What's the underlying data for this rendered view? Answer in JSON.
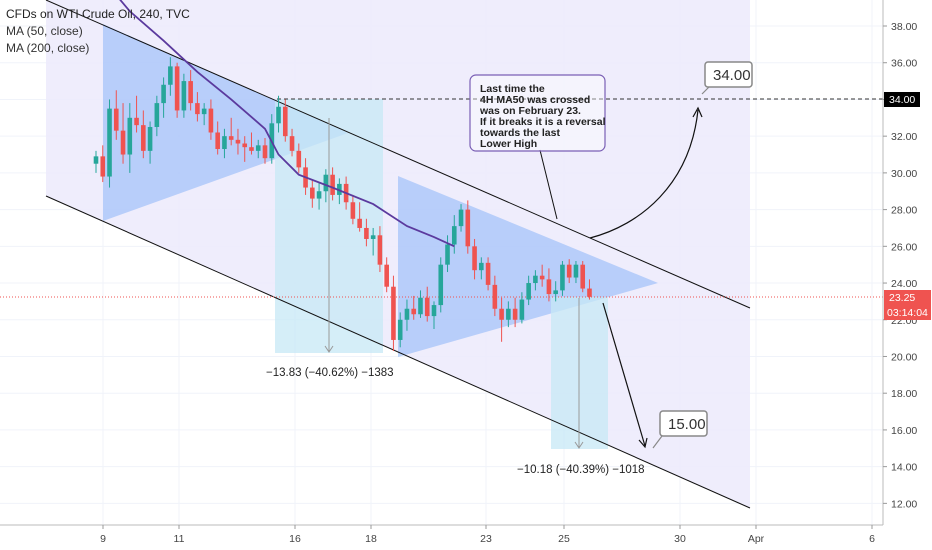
{
  "legend": {
    "title": "CFDs on WTI Crude Oil, 240, TVC",
    "ma50": "MA (50, close)",
    "ma200": "MA (200, close)"
  },
  "colors": {
    "up": "#26a69a",
    "down": "#ef5350",
    "ma50": "#5b3a9e",
    "channel_fill": "#eceafb",
    "triangle_fill": "#8ab4f8",
    "projection_fill": "#c7e8f6",
    "price_badge": "#ef5350",
    "level_badge": "#000000"
  },
  "annotations": {
    "note": [
      "Last time the",
      "4H MA50 was crossed",
      "was on February 23.",
      "If it breaks it is a reversal",
      "towards the last",
      "Lower High"
    ],
    "measure1": "−13.83 (−40.62%) −1383",
    "measure2": "−10.18 (−40.39%) −1018",
    "target_up": "34.00",
    "target_down": "15.00"
  },
  "chart_data": {
    "type": "candlestick",
    "title": "CFDs on WTI Crude Oil, 240, TVC",
    "y_axis_ticks": [
      "38.00",
      "36.00",
      "34.00",
      "32.00",
      "30.00",
      "28.00",
      "26.00",
      "24.00",
      "22.00",
      "20.00",
      "18.00",
      "16.00",
      "14.00",
      "12.00"
    ],
    "ylim": [
      11,
      39.5
    ],
    "x_axis_ticks": [
      "9",
      "11",
      "16",
      "18",
      "23",
      "25",
      "30",
      "Apr",
      "6"
    ],
    "last_price": "23.25",
    "countdown": "03:14:04",
    "level_marker": "34.00",
    "candles": [
      {
        "o": 30.5,
        "h": 31.2,
        "l": 30.0,
        "c": 30.9
      },
      {
        "o": 30.9,
        "h": 31.5,
        "l": 29.5,
        "c": 29.8
      },
      {
        "o": 29.8,
        "h": 34.0,
        "l": 29.2,
        "c": 33.5
      },
      {
        "o": 33.5,
        "h": 34.5,
        "l": 31.8,
        "c": 32.3
      },
      {
        "o": 32.3,
        "h": 33.8,
        "l": 30.5,
        "c": 31.0
      },
      {
        "o": 31.0,
        "h": 33.8,
        "l": 30.0,
        "c": 33.0
      },
      {
        "o": 33.0,
        "h": 34.2,
        "l": 32.2,
        "c": 32.6
      },
      {
        "o": 32.6,
        "h": 33.4,
        "l": 30.8,
        "c": 31.2
      },
      {
        "o": 31.2,
        "h": 32.8,
        "l": 30.5,
        "c": 32.5
      },
      {
        "o": 32.5,
        "h": 34.2,
        "l": 32.0,
        "c": 33.8
      },
      {
        "o": 33.8,
        "h": 35.2,
        "l": 33.0,
        "c": 34.8
      },
      {
        "o": 34.8,
        "h": 36.3,
        "l": 34.2,
        "c": 35.8
      },
      {
        "o": 35.8,
        "h": 36.0,
        "l": 33.0,
        "c": 33.4
      },
      {
        "o": 33.4,
        "h": 35.4,
        "l": 33.0,
        "c": 35.0
      },
      {
        "o": 35.0,
        "h": 35.6,
        "l": 33.4,
        "c": 33.8
      },
      {
        "o": 33.8,
        "h": 34.4,
        "l": 32.8,
        "c": 33.2
      },
      {
        "o": 33.2,
        "h": 33.8,
        "l": 32.6,
        "c": 33.5
      },
      {
        "o": 33.5,
        "h": 34.0,
        "l": 31.8,
        "c": 32.2
      },
      {
        "o": 32.2,
        "h": 32.8,
        "l": 31.0,
        "c": 31.3
      },
      {
        "o": 31.3,
        "h": 32.4,
        "l": 30.8,
        "c": 32.0
      },
      {
        "o": 32.0,
        "h": 33.0,
        "l": 31.5,
        "c": 31.8
      },
      {
        "o": 31.8,
        "h": 32.4,
        "l": 31.0,
        "c": 31.6
      },
      {
        "o": 31.6,
        "h": 32.0,
        "l": 30.6,
        "c": 31.4
      },
      {
        "o": 31.4,
        "h": 32.2,
        "l": 31.0,
        "c": 31.2
      },
      {
        "o": 31.2,
        "h": 31.8,
        "l": 30.8,
        "c": 31.5
      },
      {
        "o": 31.5,
        "h": 31.9,
        "l": 30.5,
        "c": 30.8
      },
      {
        "o": 30.8,
        "h": 33.2,
        "l": 30.5,
        "c": 32.7
      },
      {
        "o": 32.7,
        "h": 34.2,
        "l": 32.2,
        "c": 33.6
      },
      {
        "o": 33.6,
        "h": 34.0,
        "l": 31.7,
        "c": 32.0
      },
      {
        "o": 32.0,
        "h": 32.4,
        "l": 30.9,
        "c": 31.2
      },
      {
        "o": 31.2,
        "h": 31.6,
        "l": 30.0,
        "c": 30.3
      },
      {
        "o": 30.3,
        "h": 30.8,
        "l": 28.8,
        "c": 29.2
      },
      {
        "o": 29.2,
        "h": 29.6,
        "l": 28.1,
        "c": 28.6
      },
      {
        "o": 28.6,
        "h": 29.5,
        "l": 28.0,
        "c": 29.0
      },
      {
        "o": 29.0,
        "h": 30.2,
        "l": 28.4,
        "c": 29.9
      },
      {
        "o": 29.9,
        "h": 30.3,
        "l": 28.5,
        "c": 28.8
      },
      {
        "o": 28.8,
        "h": 29.7,
        "l": 28.3,
        "c": 29.4
      },
      {
        "o": 29.4,
        "h": 29.8,
        "l": 28.0,
        "c": 28.4
      },
      {
        "o": 28.4,
        "h": 28.8,
        "l": 27.2,
        "c": 27.5
      },
      {
        "o": 27.5,
        "h": 28.4,
        "l": 26.8,
        "c": 27.0
      },
      {
        "o": 27.0,
        "h": 27.5,
        "l": 26.0,
        "c": 26.4
      },
      {
        "o": 26.4,
        "h": 27.0,
        "l": 25.5,
        "c": 26.6
      },
      {
        "o": 26.6,
        "h": 27.1,
        "l": 24.6,
        "c": 25.0
      },
      {
        "o": 25.0,
        "h": 25.4,
        "l": 23.5,
        "c": 23.8
      },
      {
        "o": 23.8,
        "h": 24.4,
        "l": 20.3,
        "c": 20.9
      },
      {
        "o": 20.9,
        "h": 22.4,
        "l": 20.5,
        "c": 22.0
      },
      {
        "o": 22.0,
        "h": 23.1,
        "l": 21.4,
        "c": 22.6
      },
      {
        "o": 22.6,
        "h": 23.3,
        "l": 22.0,
        "c": 22.3
      },
      {
        "o": 22.3,
        "h": 23.6,
        "l": 22.1,
        "c": 23.2
      },
      {
        "o": 23.2,
        "h": 23.8,
        "l": 21.9,
        "c": 22.2
      },
      {
        "o": 22.2,
        "h": 23.0,
        "l": 21.5,
        "c": 22.8
      },
      {
        "o": 22.8,
        "h": 25.4,
        "l": 22.4,
        "c": 25.0
      },
      {
        "o": 25.0,
        "h": 26.6,
        "l": 24.6,
        "c": 26.1
      },
      {
        "o": 26.1,
        "h": 27.7,
        "l": 25.6,
        "c": 27.1
      },
      {
        "o": 27.1,
        "h": 28.3,
        "l": 26.8,
        "c": 28.0
      },
      {
        "o": 28.0,
        "h": 28.5,
        "l": 25.6,
        "c": 26.0
      },
      {
        "o": 26.0,
        "h": 26.4,
        "l": 24.2,
        "c": 24.7
      },
      {
        "o": 24.7,
        "h": 25.4,
        "l": 24.2,
        "c": 25.1
      },
      {
        "o": 25.1,
        "h": 25.4,
        "l": 23.6,
        "c": 23.9
      },
      {
        "o": 23.9,
        "h": 24.4,
        "l": 22.2,
        "c": 22.6
      },
      {
        "o": 22.6,
        "h": 23.2,
        "l": 20.8,
        "c": 22.0
      },
      {
        "o": 22.0,
        "h": 23.0,
        "l": 21.6,
        "c": 22.6
      },
      {
        "o": 22.6,
        "h": 23.2,
        "l": 21.6,
        "c": 22.0
      },
      {
        "o": 22.0,
        "h": 23.5,
        "l": 21.8,
        "c": 23.1
      },
      {
        "o": 23.1,
        "h": 24.4,
        "l": 22.8,
        "c": 24.0
      },
      {
        "o": 24.0,
        "h": 24.7,
        "l": 23.6,
        "c": 24.4
      },
      {
        "o": 24.4,
        "h": 25.0,
        "l": 23.8,
        "c": 24.2
      },
      {
        "o": 24.2,
        "h": 24.8,
        "l": 23.0,
        "c": 23.4
      },
      {
        "o": 23.4,
        "h": 24.1,
        "l": 23.0,
        "c": 23.6
      },
      {
        "o": 23.6,
        "h": 25.2,
        "l": 23.3,
        "c": 25.0
      },
      {
        "o": 25.0,
        "h": 25.3,
        "l": 24.0,
        "c": 24.3
      },
      {
        "o": 24.3,
        "h": 25.2,
        "l": 24.0,
        "c": 25.0
      },
      {
        "o": 25.0,
        "h": 25.2,
        "l": 23.5,
        "c": 23.7
      },
      {
        "o": 23.7,
        "h": 24.2,
        "l": 23.1,
        "c": 23.25
      }
    ],
    "ma50": [
      {
        "x": 0,
        "y": 41.0
      },
      {
        "x": 5,
        "y": 38.8
      },
      {
        "x": 10,
        "y": 37.2
      },
      {
        "x": 15,
        "y": 35.5
      },
      {
        "x": 20,
        "y": 34.0
      },
      {
        "x": 25,
        "y": 32.4
      },
      {
        "x": 27,
        "y": 31.0
      },
      {
        "x": 30,
        "y": 29.9
      },
      {
        "x": 35,
        "y": 29.2
      },
      {
        "x": 41,
        "y": 28.3
      },
      {
        "x": 46,
        "y": 27.1
      },
      {
        "x": 50,
        "y": 26.5
      },
      {
        "x": 53,
        "y": 26.0
      }
    ]
  }
}
